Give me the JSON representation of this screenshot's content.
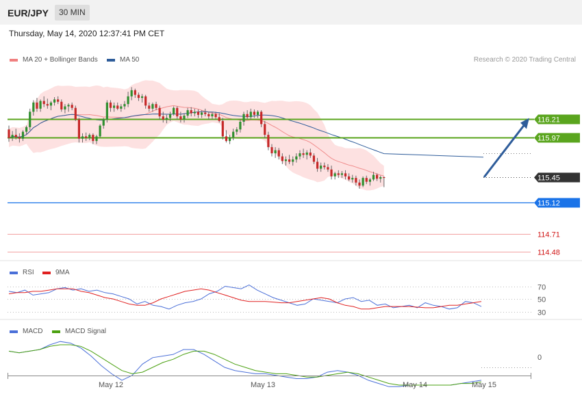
{
  "header": {
    "pair": "EUR/JPY",
    "timeframe": "30 MIN",
    "datetime": "Thursday, May 14, 2020 12:37:41 PM CET"
  },
  "chart_data": [
    {
      "type": "candlestick",
      "legend": [
        "MA 20 + Bollinger Bands",
        "MA 50"
      ],
      "legend_colors": [
        "#f08080",
        "#2e5c9a"
      ],
      "credit": "Research © 2020 Trading Central",
      "x_labels": [
        "May 12",
        "May 13",
        "May 14",
        "May 15"
      ],
      "ylim": [
        114.3,
        116.7
      ],
      "ohlc": [
        [
          116.07,
          116.12,
          115.91,
          115.96
        ],
        [
          115.96,
          116.05,
          115.92,
          116.0
        ],
        [
          116.0,
          116.08,
          115.94,
          115.97
        ],
        [
          115.97,
          116.02,
          115.9,
          115.95
        ],
        [
          115.95,
          116.06,
          115.92,
          116.04
        ],
        [
          116.04,
          116.12,
          116.0,
          116.1
        ],
        [
          116.1,
          116.34,
          116.06,
          116.3
        ],
        [
          116.3,
          116.45,
          116.25,
          116.42
        ],
        [
          116.42,
          116.48,
          116.3,
          116.34
        ],
        [
          116.34,
          116.46,
          116.3,
          116.44
        ],
        [
          116.44,
          116.5,
          116.36,
          116.4
        ],
        [
          116.4,
          116.47,
          116.34,
          116.38
        ],
        [
          116.38,
          116.44,
          116.32,
          116.42
        ],
        [
          116.42,
          116.49,
          116.38,
          116.46
        ],
        [
          116.46,
          116.5,
          116.4,
          116.43
        ],
        [
          116.43,
          116.46,
          116.3,
          116.33
        ],
        [
          116.33,
          116.4,
          116.28,
          116.37
        ],
        [
          116.37,
          116.41,
          116.3,
          116.39
        ],
        [
          116.39,
          116.42,
          116.32,
          116.35
        ],
        [
          116.35,
          116.38,
          116.18,
          116.2
        ],
        [
          116.2,
          116.22,
          115.9,
          115.95
        ],
        [
          115.95,
          116.02,
          115.9,
          115.98
        ],
        [
          115.98,
          116.03,
          115.92,
          115.96
        ],
        [
          115.96,
          116.02,
          115.93,
          116.0
        ],
        [
          116.0,
          116.02,
          115.88,
          115.92
        ],
        [
          115.92,
          116.0,
          115.88,
          115.98
        ],
        [
          115.98,
          116.14,
          115.96,
          116.12
        ],
        [
          116.12,
          116.22,
          116.08,
          116.2
        ],
        [
          116.2,
          116.45,
          116.16,
          116.42
        ],
        [
          116.42,
          116.45,
          116.3,
          116.35
        ],
        [
          116.35,
          116.42,
          116.3,
          116.38
        ],
        [
          116.38,
          116.42,
          116.32,
          116.34
        ],
        [
          116.34,
          116.4,
          116.3,
          116.37
        ],
        [
          116.37,
          116.44,
          116.33,
          116.4
        ],
        [
          116.4,
          116.56,
          116.36,
          116.5
        ],
        [
          116.5,
          116.62,
          116.45,
          116.58
        ],
        [
          116.58,
          116.6,
          116.48,
          116.52
        ],
        [
          116.52,
          116.55,
          116.44,
          116.48
        ],
        [
          116.48,
          116.53,
          116.42,
          116.5
        ],
        [
          116.5,
          116.52,
          116.34,
          116.38
        ],
        [
          116.38,
          116.42,
          116.3,
          116.34
        ],
        [
          116.34,
          116.42,
          116.3,
          116.4
        ],
        [
          116.4,
          116.43,
          116.32,
          116.35
        ],
        [
          116.35,
          116.38,
          116.2,
          116.24
        ],
        [
          116.24,
          116.3,
          116.16,
          116.2
        ],
        [
          116.2,
          116.26,
          116.15,
          116.22
        ],
        [
          116.22,
          116.3,
          116.18,
          116.27
        ],
        [
          116.27,
          116.37,
          116.25,
          116.35
        ],
        [
          116.35,
          116.37,
          116.2,
          116.24
        ],
        [
          116.24,
          116.3,
          116.16,
          116.2
        ],
        [
          116.2,
          116.28,
          116.16,
          116.25
        ],
        [
          116.25,
          116.35,
          116.22,
          116.32
        ],
        [
          116.32,
          116.36,
          116.24,
          116.28
        ],
        [
          116.28,
          116.34,
          116.24,
          116.3
        ],
        [
          116.3,
          116.33,
          116.22,
          116.26
        ],
        [
          116.26,
          116.32,
          116.22,
          116.29
        ],
        [
          116.29,
          116.34,
          116.24,
          116.27
        ],
        [
          116.27,
          116.3,
          116.2,
          116.24
        ],
        [
          116.24,
          116.3,
          116.2,
          116.27
        ],
        [
          116.27,
          116.3,
          116.2,
          116.23
        ],
        [
          116.23,
          116.28,
          116.16,
          116.18
        ],
        [
          116.18,
          116.22,
          115.94,
          115.98
        ],
        [
          115.98,
          116.06,
          115.9,
          115.92
        ],
        [
          115.92,
          116.0,
          115.88,
          115.97
        ],
        [
          115.97,
          116.08,
          115.93,
          116.04
        ],
        [
          116.04,
          116.1,
          116.0,
          116.07
        ],
        [
          116.07,
          116.2,
          116.03,
          116.17
        ],
        [
          116.17,
          116.3,
          116.12,
          116.27
        ],
        [
          116.27,
          116.32,
          116.2,
          116.23
        ],
        [
          116.23,
          116.34,
          116.2,
          116.3
        ],
        [
          116.3,
          116.33,
          116.22,
          116.26
        ],
        [
          116.26,
          116.32,
          116.22,
          116.3
        ],
        [
          116.3,
          116.32,
          116.1,
          116.14
        ],
        [
          116.14,
          116.18,
          115.96,
          116.0
        ],
        [
          116.0,
          116.04,
          115.8,
          115.84
        ],
        [
          115.84,
          115.88,
          115.72,
          115.76
        ],
        [
          115.76,
          115.84,
          115.7,
          115.8
        ],
        [
          115.8,
          115.83,
          115.68,
          115.72
        ],
        [
          115.72,
          115.76,
          115.62,
          115.66
        ],
        [
          115.66,
          115.72,
          115.6,
          115.68
        ],
        [
          115.68,
          115.74,
          115.62,
          115.65
        ],
        [
          115.65,
          115.72,
          115.6,
          115.68
        ],
        [
          115.68,
          115.76,
          115.64,
          115.72
        ],
        [
          115.72,
          115.8,
          115.68,
          115.76
        ],
        [
          115.76,
          115.82,
          115.7,
          115.74
        ],
        [
          115.74,
          115.8,
          115.68,
          115.77
        ],
        [
          115.77,
          115.82,
          115.7,
          115.73
        ],
        [
          115.73,
          115.76,
          115.62,
          115.65
        ],
        [
          115.65,
          115.7,
          115.52,
          115.56
        ],
        [
          115.56,
          115.64,
          115.52,
          115.6
        ],
        [
          115.6,
          115.64,
          115.55,
          115.58
        ],
        [
          115.58,
          115.62,
          115.52,
          115.55
        ],
        [
          115.55,
          115.6,
          115.42,
          115.46
        ],
        [
          115.46,
          115.52,
          115.42,
          115.5
        ],
        [
          115.5,
          115.54,
          115.44,
          115.48
        ],
        [
          115.48,
          115.53,
          115.44,
          115.5
        ],
        [
          115.5,
          115.54,
          115.42,
          115.46
        ],
        [
          115.46,
          115.5,
          115.4,
          115.42
        ],
        [
          115.42,
          115.48,
          115.38,
          115.44
        ],
        [
          115.44,
          115.47,
          115.34,
          115.38
        ],
        [
          115.38,
          115.42,
          115.3,
          115.34
        ],
        [
          115.34,
          115.46,
          115.32,
          115.44
        ],
        [
          115.44,
          115.47,
          115.36,
          115.39
        ],
        [
          115.39,
          115.44,
          115.34,
          115.42
        ],
        [
          115.42,
          115.52,
          115.4,
          115.48
        ],
        [
          115.48,
          115.5,
          115.4,
          115.43
        ],
        [
          115.43,
          115.47,
          115.38,
          115.45
        ],
        [
          115.45,
          115.46,
          115.32,
          115.44
        ]
      ],
      "levels": [
        {
          "value": 116.21,
          "label": "116.21",
          "kind": "resistance",
          "color": "#5aa51e"
        },
        {
          "value": 115.97,
          "label": "115.97",
          "kind": "resistance",
          "color": "#5aa51e"
        },
        {
          "value": 115.45,
          "label": "115.45",
          "kind": "current",
          "color": "#333333"
        },
        {
          "value": 115.12,
          "label": "115.12",
          "kind": "pivot",
          "color": "#1a73e8"
        },
        {
          "value": 114.71,
          "label": "114.71",
          "kind": "support",
          "color": "#d01515"
        },
        {
          "value": 114.48,
          "label": "114.48",
          "kind": "support",
          "color": "#d01515"
        }
      ],
      "arrow": {
        "from": 115.45,
        "to": 116.21,
        "direction": "up"
      }
    },
    {
      "type": "line",
      "panel": "RSI",
      "legend": [
        "RSI",
        "9MA"
      ],
      "legend_colors": [
        "#4a6fd8",
        "#e02020"
      ],
      "ylim": [
        0,
        100
      ],
      "y_ticks": [
        70,
        50,
        30
      ],
      "series": [
        {
          "name": "RSI",
          "values": [
            62,
            60,
            64,
            56,
            58,
            60,
            66,
            68,
            64,
            66,
            62,
            64,
            60,
            58,
            54,
            50,
            42,
            46,
            40,
            38,
            34,
            40,
            44,
            46,
            50,
            58,
            62,
            70,
            68,
            66,
            72,
            64,
            58,
            52,
            48,
            44,
            40,
            42,
            50,
            48,
            46,
            44,
            50,
            52,
            46,
            48,
            40,
            42,
            36,
            38,
            40,
            36,
            44,
            40,
            38,
            34,
            36,
            46,
            44,
            38
          ]
        },
        {
          "name": "9MA",
          "values": [
            58,
            60,
            60,
            62,
            62,
            64,
            66,
            66,
            66,
            62,
            60,
            56,
            52,
            50,
            46,
            42,
            40,
            40,
            44,
            50,
            54,
            58,
            62,
            64,
            66,
            64,
            60,
            56,
            52,
            48,
            46,
            46,
            46,
            45,
            44,
            44,
            46,
            48,
            50,
            52,
            50,
            44,
            40,
            38,
            34,
            34,
            36,
            38,
            38,
            38,
            38,
            37,
            36,
            36,
            38,
            40,
            40,
            42,
            44,
            46
          ]
        }
      ]
    },
    {
      "type": "line",
      "panel": "MACD",
      "legend": [
        "MACD",
        "MACD Signal"
      ],
      "legend_colors": [
        "#4a6fd8",
        "#4aa010"
      ],
      "y_ticks": [
        0
      ],
      "series": [
        {
          "name": "MACD",
          "values": [
            0.1,
            0.09,
            0.1,
            0.11,
            0.14,
            0.16,
            0.15,
            0.12,
            0.07,
            0.01,
            -0.04,
            -0.08,
            -0.05,
            0.02,
            0.06,
            0.07,
            0.08,
            0.11,
            0.11,
            0.08,
            0.04,
            0.0,
            -0.02,
            -0.03,
            -0.04,
            -0.04,
            -0.05,
            -0.06,
            -0.07,
            -0.07,
            -0.06,
            -0.03,
            -0.02,
            -0.03,
            -0.05,
            -0.08,
            -0.1,
            -0.12,
            -0.12,
            -0.11,
            -0.11,
            -0.11,
            -0.11,
            -0.11,
            -0.1,
            -0.09,
            -0.08
          ]
        },
        {
          "name": "MACD Signal",
          "values": [
            0.1,
            0.09,
            0.1,
            0.11,
            0.13,
            0.14,
            0.14,
            0.13,
            0.1,
            0.06,
            0.02,
            -0.02,
            -0.04,
            -0.03,
            0.0,
            0.03,
            0.05,
            0.08,
            0.1,
            0.1,
            0.08,
            0.05,
            0.02,
            0.0,
            -0.02,
            -0.03,
            -0.04,
            -0.04,
            -0.05,
            -0.06,
            -0.06,
            -0.05,
            -0.04,
            -0.03,
            -0.04,
            -0.06,
            -0.08,
            -0.1,
            -0.11,
            -0.11,
            -0.11,
            -0.11,
            -0.11,
            -0.11,
            -0.1,
            -0.1,
            -0.09
          ]
        }
      ]
    }
  ]
}
